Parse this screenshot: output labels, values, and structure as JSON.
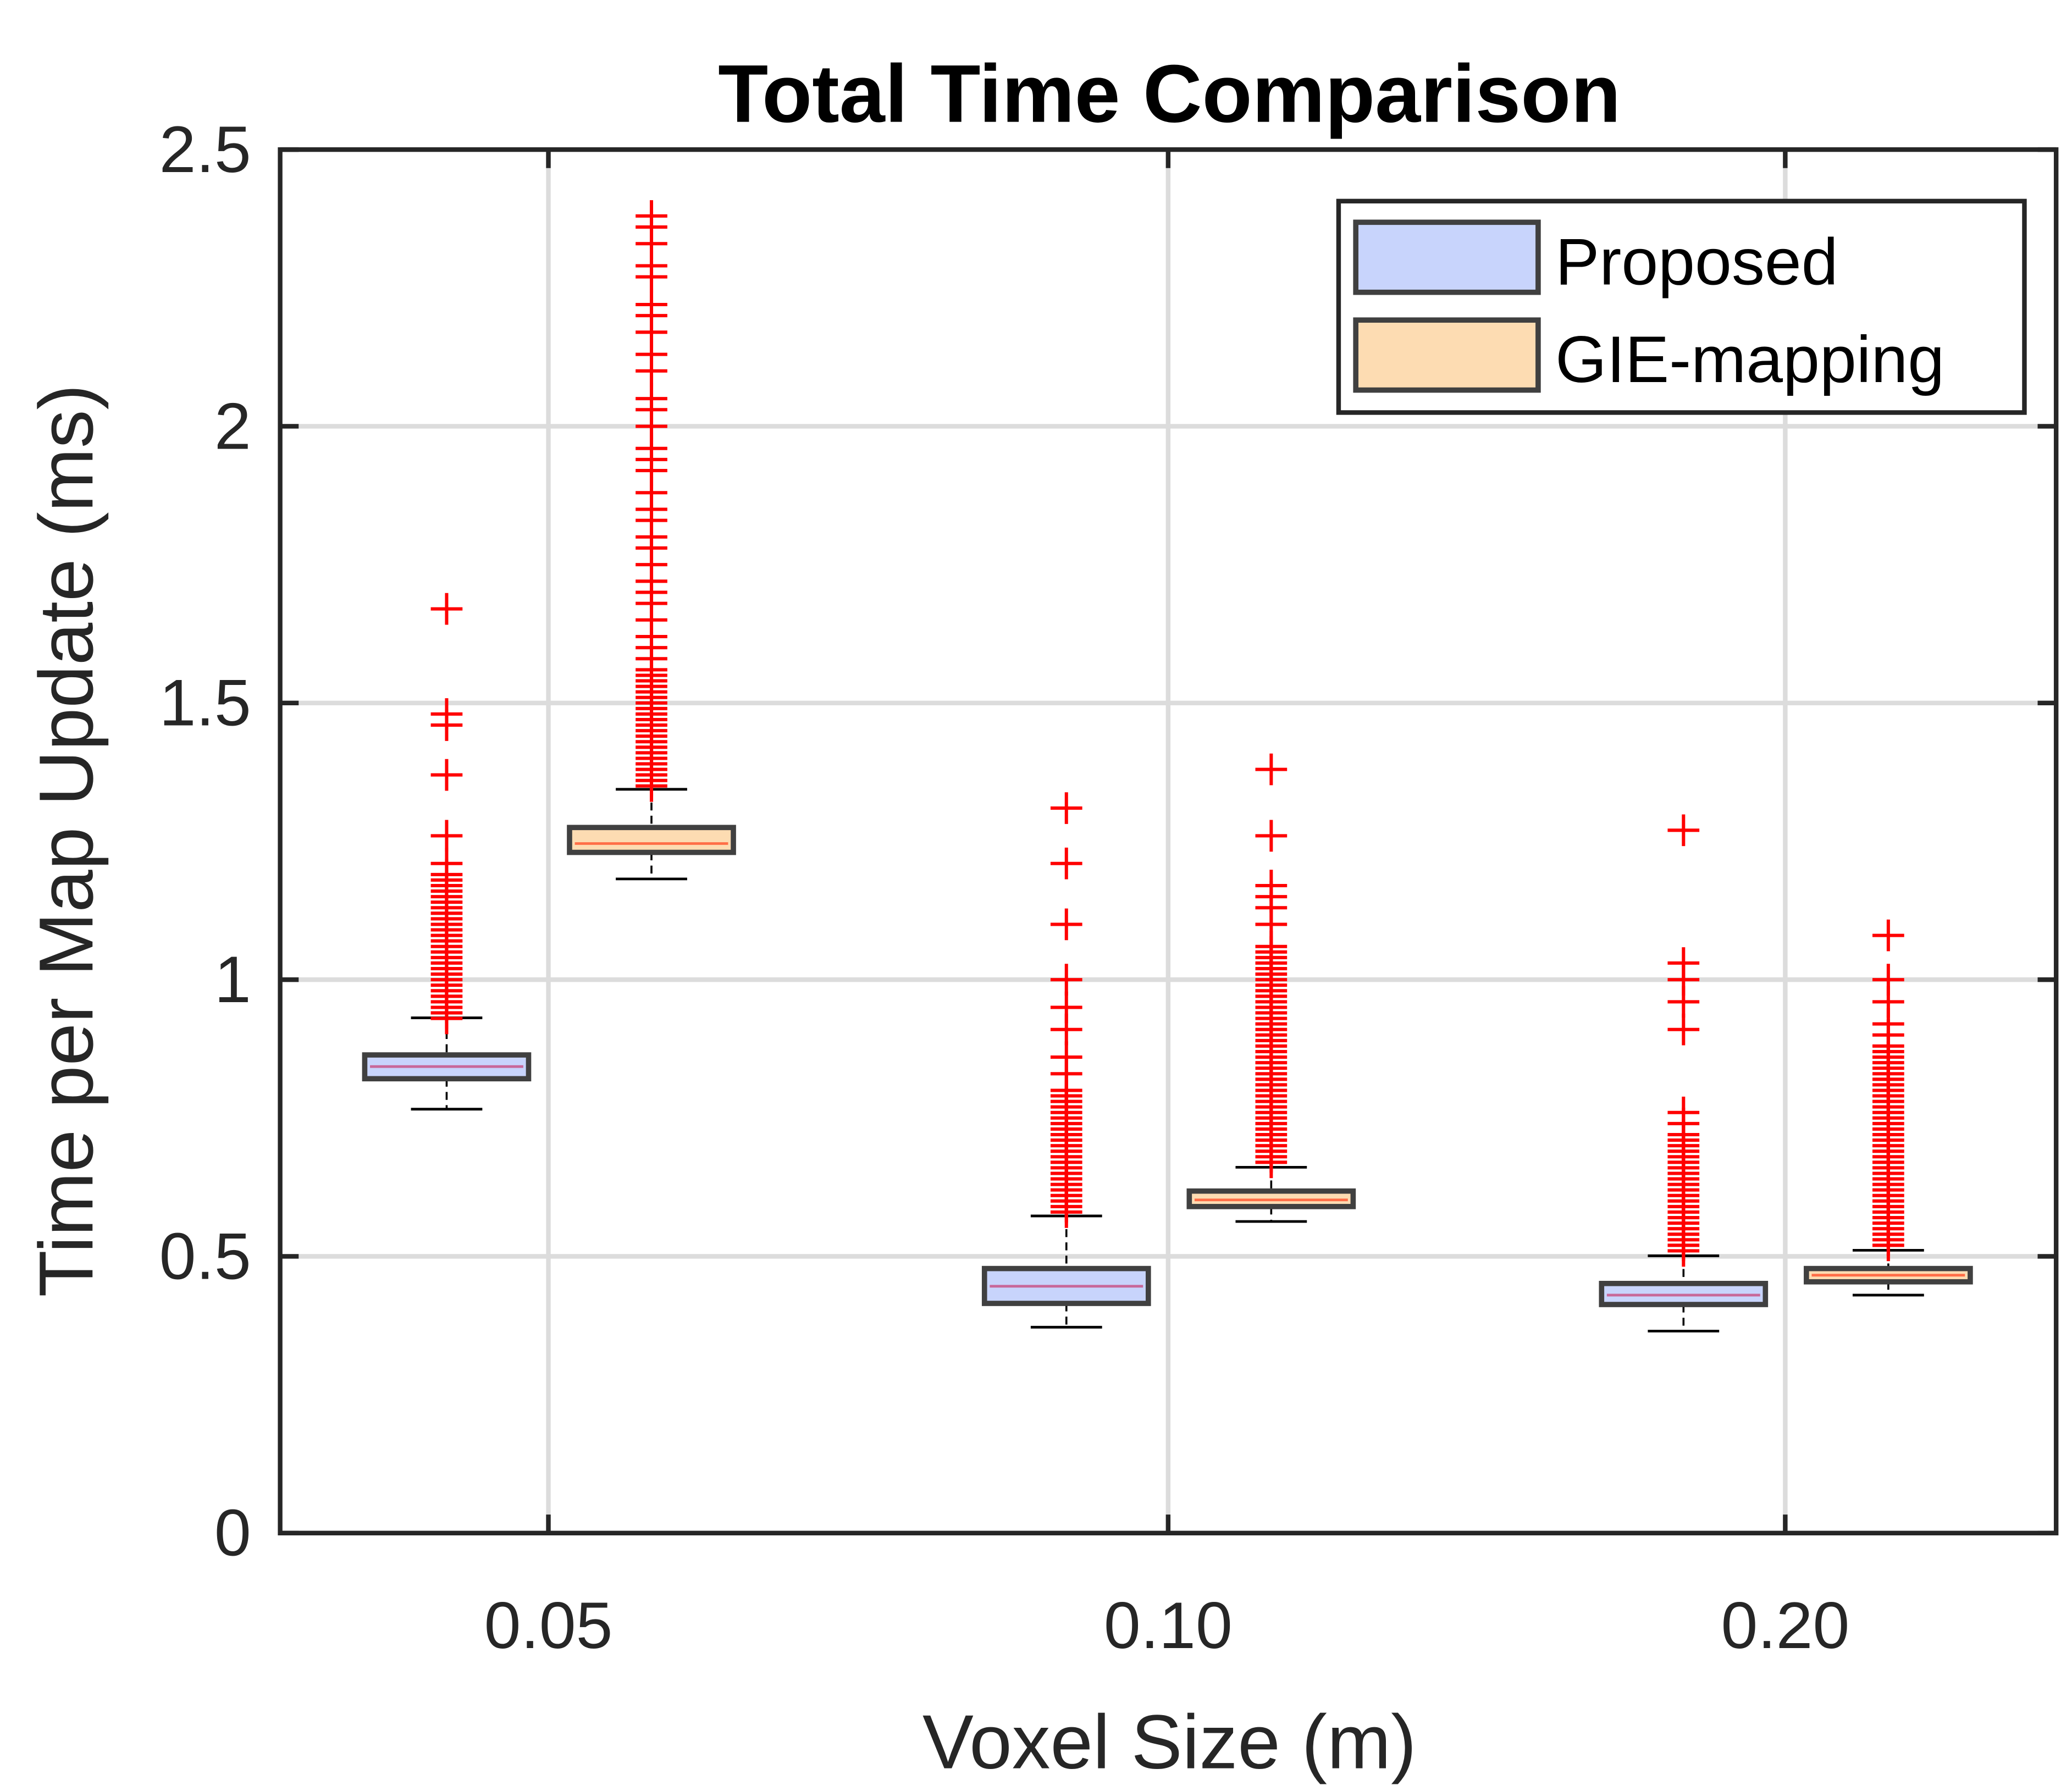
{
  "chart_data": {
    "type": "box",
    "title": "Total Time Comparison",
    "xlabel": "Voxel Size (m)",
    "ylabel": "Time per Map Update (ms)",
    "ylim": [
      0,
      2.5
    ],
    "yticks": [
      "0",
      "0.5",
      "1",
      "1.5",
      "2",
      "2.5"
    ],
    "ytick_values": [
      0,
      0.5,
      1,
      1.5,
      2,
      2.5
    ],
    "categories": [
      "0.05",
      "0.10",
      "0.20"
    ],
    "grid": true,
    "legend_position": "top-right",
    "outlier_color": "#ff0000",
    "series": [
      {
        "name": "Proposed",
        "fill": "#c8d4fc",
        "median_color": "#c8689a",
        "boxes": [
          {
            "min": 0.766,
            "q1": 0.821,
            "median": 0.843,
            "q3": 0.864,
            "max": 0.931,
            "outliers": [
              0.93,
              0.94,
              0.95,
              0.96,
              0.97,
              0.98,
              0.99,
              1.0,
              1.01,
              1.02,
              1.03,
              1.04,
              1.05,
              1.06,
              1.07,
              1.08,
              1.09,
              1.1,
              1.11,
              1.12,
              1.13,
              1.14,
              1.15,
              1.16,
              1.17,
              1.18,
              1.19,
              1.21,
              1.26,
              1.37,
              1.46,
              1.48,
              1.67
            ]
          },
          {
            "min": 0.372,
            "q1": 0.415,
            "median": 0.446,
            "q3": 0.478,
            "max": 0.573,
            "outliers": [
              0.58,
              0.59,
              0.6,
              0.61,
              0.62,
              0.63,
              0.64,
              0.65,
              0.66,
              0.67,
              0.68,
              0.69,
              0.7,
              0.71,
              0.72,
              0.73,
              0.74,
              0.75,
              0.76,
              0.77,
              0.78,
              0.79,
              0.8,
              0.83,
              0.86,
              0.91,
              0.95,
              1.0,
              1.1,
              1.21,
              1.31
            ]
          },
          {
            "min": 0.365,
            "q1": 0.413,
            "median": 0.43,
            "q3": 0.451,
            "max": 0.501,
            "outliers": [
              0.51,
              0.52,
              0.53,
              0.54,
              0.55,
              0.56,
              0.57,
              0.58,
              0.59,
              0.6,
              0.61,
              0.62,
              0.63,
              0.64,
              0.65,
              0.66,
              0.67,
              0.68,
              0.69,
              0.7,
              0.71,
              0.72,
              0.74,
              0.76,
              0.91,
              0.96,
              1.0,
              1.03,
              1.27
            ]
          }
        ]
      },
      {
        "name": "GIE-mapping",
        "fill": "#fddcb2",
        "median_color": "#ff6e47",
        "boxes": [
          {
            "min": 1.182,
            "q1": 1.23,
            "median": 1.246,
            "q3": 1.275,
            "max": 1.344,
            "outliers": [
              1.35,
              1.36,
              1.37,
              1.38,
              1.39,
              1.4,
              1.41,
              1.42,
              1.43,
              1.44,
              1.45,
              1.46,
              1.47,
              1.48,
              1.49,
              1.5,
              1.51,
              1.52,
              1.53,
              1.54,
              1.55,
              1.56,
              1.58,
              1.6,
              1.62,
              1.65,
              1.68,
              1.7,
              1.72,
              1.75,
              1.78,
              1.8,
              1.83,
              1.85,
              1.88,
              1.92,
              1.94,
              1.96,
              2.0,
              2.03,
              2.05,
              2.1,
              2.13,
              2.17,
              2.2,
              2.22,
              2.27,
              2.29,
              2.33,
              2.36,
              2.38
            ]
          },
          {
            "min": 0.563,
            "q1": 0.59,
            "median": 0.602,
            "q3": 0.618,
            "max": 0.661,
            "outliers": [
              0.67,
              0.68,
              0.69,
              0.7,
              0.71,
              0.72,
              0.73,
              0.74,
              0.75,
              0.76,
              0.77,
              0.78,
              0.79,
              0.8,
              0.81,
              0.82,
              0.83,
              0.84,
              0.85,
              0.86,
              0.87,
              0.88,
              0.89,
              0.9,
              0.91,
              0.92,
              0.93,
              0.94,
              0.95,
              0.96,
              0.97,
              0.98,
              0.99,
              1.0,
              1.01,
              1.02,
              1.03,
              1.04,
              1.05,
              1.06,
              1.1,
              1.13,
              1.15,
              1.17,
              1.26,
              1.38
            ]
          },
          {
            "min": 0.43,
            "q1": 0.454,
            "median": 0.466,
            "q3": 0.478,
            "max": 0.511,
            "outliers": [
              0.52,
              0.53,
              0.54,
              0.55,
              0.56,
              0.57,
              0.58,
              0.59,
              0.6,
              0.61,
              0.62,
              0.63,
              0.64,
              0.65,
              0.66,
              0.67,
              0.68,
              0.69,
              0.7,
              0.71,
              0.72,
              0.73,
              0.74,
              0.75,
              0.76,
              0.77,
              0.78,
              0.79,
              0.8,
              0.81,
              0.82,
              0.83,
              0.84,
              0.85,
              0.86,
              0.87,
              0.88,
              0.9,
              0.92,
              0.96,
              1.0,
              1.08
            ]
          }
        ]
      }
    ]
  }
}
